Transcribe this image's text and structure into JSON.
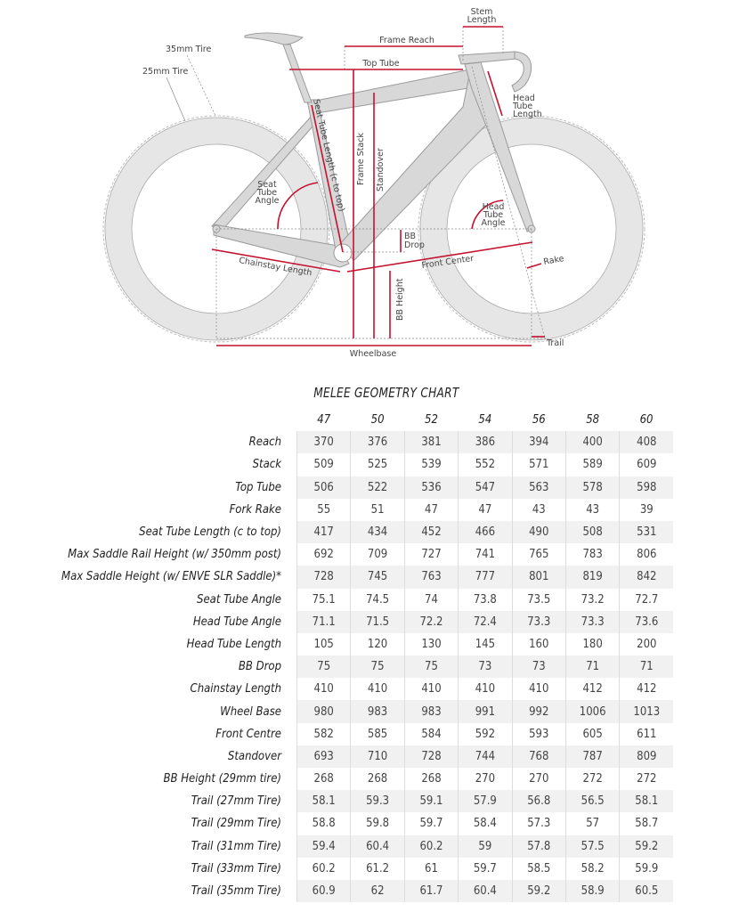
{
  "diagram": {
    "labels": {
      "stem_length_1": "Stem",
      "stem_length_2": "Length",
      "frame_reach": "Frame Reach",
      "top_tube": "Top Tube",
      "tire_35": "35mm Tire",
      "tire_25": "25mm Tire",
      "seat_tube_length": "Seat Tube Length (c to top)",
      "frame_stack": "Frame Stack",
      "standover": "Standover",
      "seat_tube_angle_1": "Seat",
      "seat_tube_angle_2": "Tube",
      "seat_tube_angle_3": "Angle",
      "head_tube_length_1": "Head",
      "head_tube_length_2": "Tube",
      "head_tube_length_3": "Length",
      "head_tube_angle_1": "Head",
      "head_tube_angle_2": "Tube",
      "head_tube_angle_3": "Angle",
      "bb_drop_1": "BB",
      "bb_drop_2": "Drop",
      "chainstay_length": "Chainstay Length",
      "front_center": "Front Center",
      "rake": "Rake",
      "bb_height": "BB Height",
      "trail": "Trail",
      "wheelbase": "Wheelbase"
    },
    "colors": {
      "measure": "#c4122f",
      "frame": "#d8d8d8",
      "outline": "#9a9a9a"
    }
  },
  "chart": {
    "title": "MELEE GEOMETRY CHART",
    "sizes": [
      "47",
      "50",
      "52",
      "54",
      "56",
      "58",
      "60"
    ],
    "rows": [
      {
        "label": "Reach",
        "values": [
          "370",
          "376",
          "381",
          "386",
          "394",
          "400",
          "408"
        ]
      },
      {
        "label": "Stack",
        "values": [
          "509",
          "525",
          "539",
          "552",
          "571",
          "589",
          "609"
        ]
      },
      {
        "label": "Top Tube",
        "values": [
          "506",
          "522",
          "536",
          "547",
          "563",
          "578",
          "598"
        ]
      },
      {
        "label": "Fork Rake",
        "values": [
          "55",
          "51",
          "47",
          "47",
          "43",
          "43",
          "39"
        ]
      },
      {
        "label": "Seat Tube Length (c to top)",
        "values": [
          "417",
          "434",
          "452",
          "466",
          "490",
          "508",
          "531"
        ]
      },
      {
        "label": "Max Saddle Rail Height (w/ 350mm post)",
        "values": [
          "692",
          "709",
          "727",
          "741",
          "765",
          "783",
          "806"
        ]
      },
      {
        "label": "Max Saddle Height (w/ ENVE SLR Saddle)*",
        "values": [
          "728",
          "745",
          "763",
          "777",
          "801",
          "819",
          "842"
        ]
      },
      {
        "label": "Seat Tube Angle",
        "values": [
          "75.1",
          "74.5",
          "74",
          "73.8",
          "73.5",
          "73.2",
          "72.7"
        ]
      },
      {
        "label": "Head Tube Angle",
        "values": [
          "71.1",
          "71.5",
          "72.2",
          "72.4",
          "73.3",
          "73.3",
          "73.6"
        ]
      },
      {
        "label": "Head Tube Length",
        "values": [
          "105",
          "120",
          "130",
          "145",
          "160",
          "180",
          "200"
        ]
      },
      {
        "label": "BB Drop",
        "values": [
          "75",
          "75",
          "75",
          "73",
          "73",
          "71",
          "71"
        ]
      },
      {
        "label": "Chainstay Length",
        "values": [
          "410",
          "410",
          "410",
          "410",
          "410",
          "412",
          "412"
        ]
      },
      {
        "label": "Wheel Base",
        "values": [
          "980",
          "983",
          "983",
          "991",
          "992",
          "1006",
          "1013"
        ]
      },
      {
        "label": "Front Centre",
        "values": [
          "582",
          "585",
          "584",
          "592",
          "593",
          "605",
          "611"
        ]
      },
      {
        "label": "Standover",
        "values": [
          "693",
          "710",
          "728",
          "744",
          "768",
          "787",
          "809"
        ]
      },
      {
        "label": "BB Height (29mm tire)",
        "values": [
          "268",
          "268",
          "268",
          "270",
          "270",
          "272",
          "272"
        ]
      },
      {
        "label": "Trail (27mm Tire)",
        "values": [
          "58.1",
          "59.3",
          "59.1",
          "57.9",
          "56.8",
          "56.5",
          "58.1"
        ]
      },
      {
        "label": "Trail (29mm Tire)",
        "values": [
          "58.8",
          "59.8",
          "59.7",
          "58.4",
          "57.3",
          "57",
          "58.7"
        ]
      },
      {
        "label": "Trail (31mm Tire)",
        "values": [
          "59.4",
          "60.4",
          "60.2",
          "59",
          "57.8",
          "57.5",
          "59.2"
        ]
      },
      {
        "label": "Trail (33mm Tire)",
        "values": [
          "60.2",
          "61.2",
          "61",
          "59.7",
          "58.5",
          "58.2",
          "59.9"
        ]
      },
      {
        "label": "Trail (35mm Tire)",
        "values": [
          "60.9",
          "62",
          "61.7",
          "60.4",
          "59.2",
          "58.9",
          "60.5"
        ]
      }
    ]
  }
}
